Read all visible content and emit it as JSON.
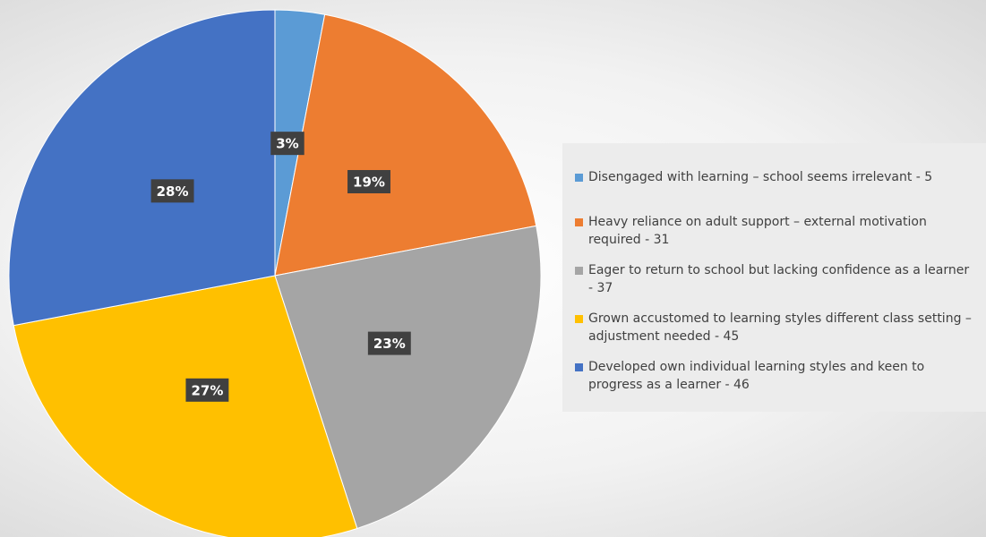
{
  "chart_data": {
    "type": "pie",
    "categories": [
      "Disengaged with learning – school seems irrelevant - 5",
      "Heavy reliance on adult support – external motivation required - 31",
      "Eager to return to school but lacking confidence as a learner - 37",
      "Grown accustomed to learning styles different class setting – adjustment needed - 45",
      "Developed own individual learning styles and keen to progress as a learner - 46"
    ],
    "values": [
      3,
      19,
      23,
      27,
      28
    ],
    "value_labels": [
      "3%",
      "19%",
      "23%",
      "27%",
      "28%"
    ],
    "colors": [
      "#5b9bd5",
      "#ed7d31",
      "#a5a5a5",
      "#ffc000",
      "#4472c4"
    ],
    "legend": "right"
  }
}
